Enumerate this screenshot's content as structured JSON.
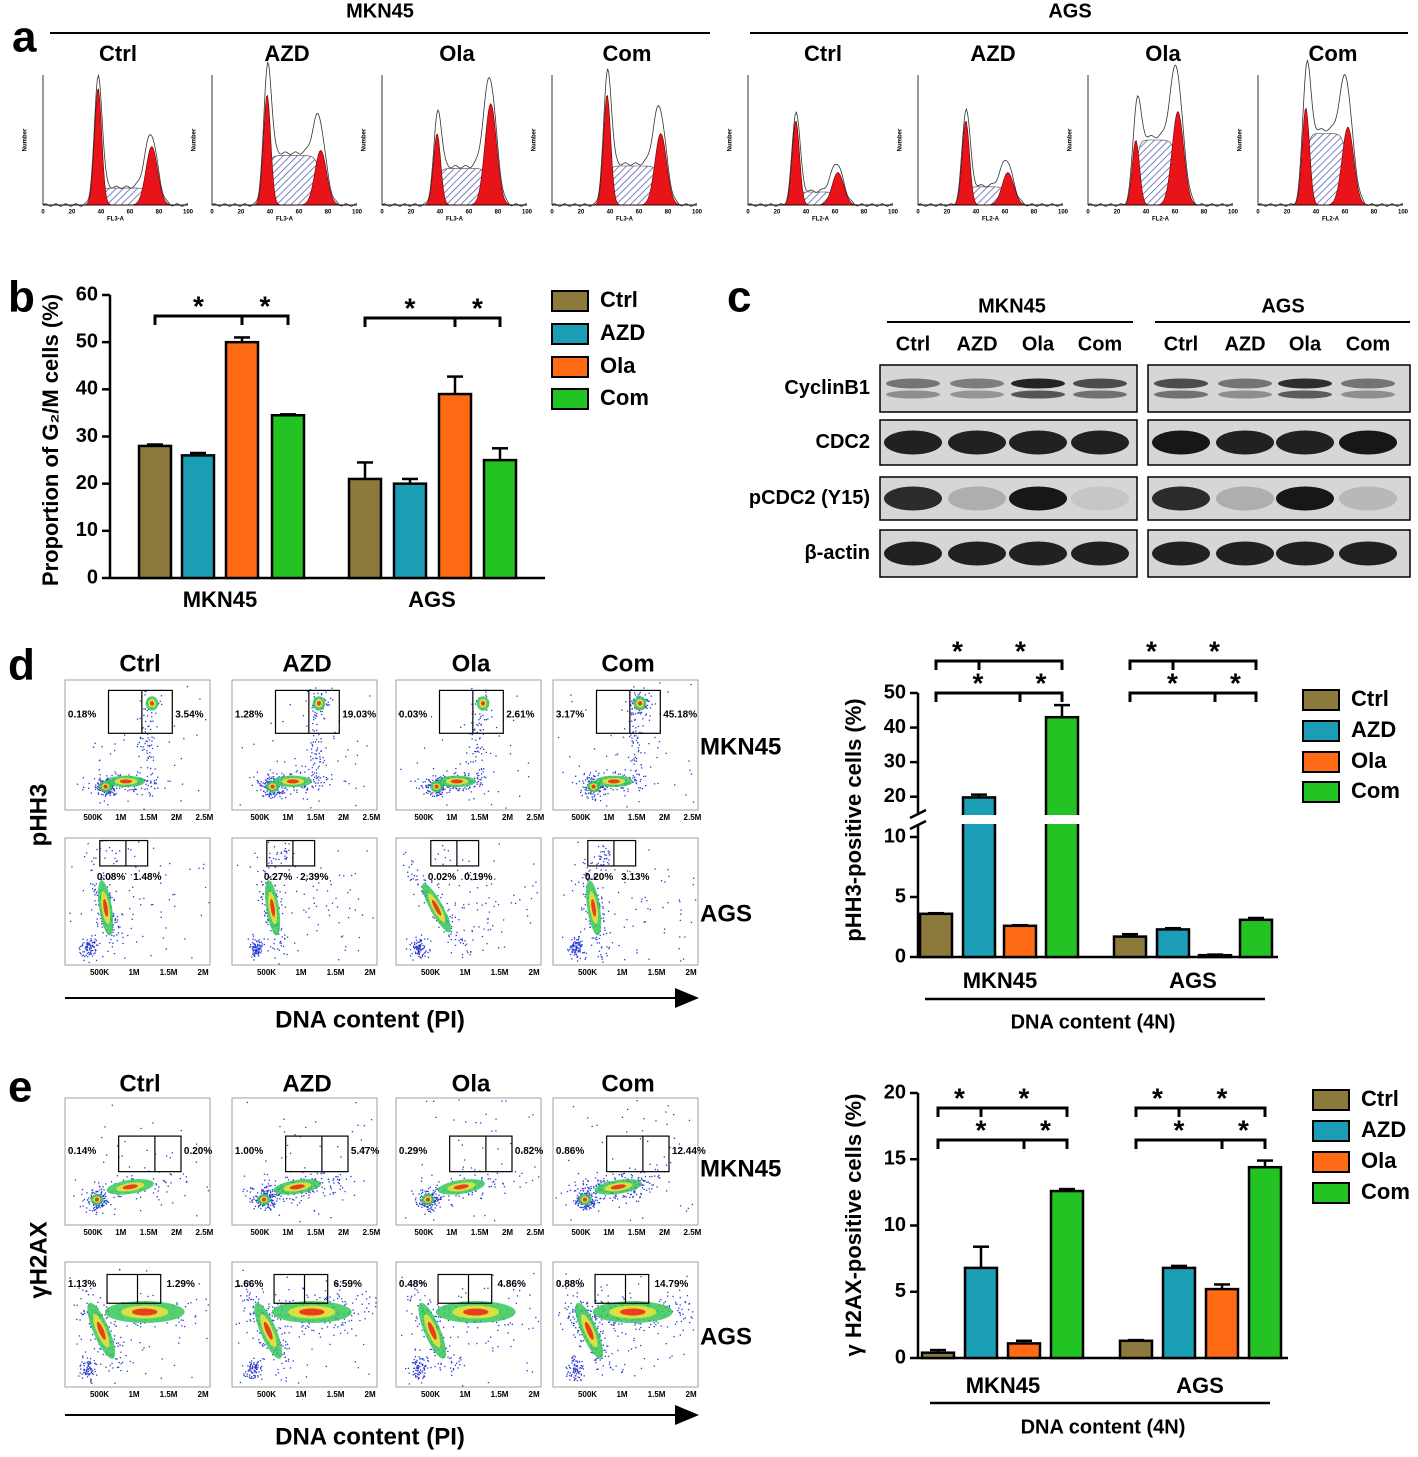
{
  "panels": {
    "a": {
      "letter": "a",
      "y_label": "Number",
      "xticks": [
        0,
        20,
        40,
        60,
        80,
        100
      ],
      "groups": [
        {
          "name": "MKN45",
          "conditions": [
            "Ctrl",
            "AZD",
            "Ola",
            "Com"
          ],
          "x_label": "FL3-A"
        },
        {
          "name": "AGS",
          "conditions": [
            "Ctrl",
            "AZD",
            "Ola",
            "Com"
          ],
          "x_label": "FL2-A"
        }
      ]
    },
    "c": {
      "letter": "c",
      "proteins": [
        "CyclinB1",
        "CDC2",
        "pCDC2 (Y15)",
        "β-actin"
      ],
      "groups": [
        {
          "name": "MKN45",
          "lanes": [
            "Ctrl",
            "AZD",
            "Ola",
            "Com"
          ]
        },
        {
          "name": "AGS",
          "lanes": [
            "Ctrl",
            "AZD",
            "Ola",
            "Com"
          ]
        }
      ]
    },
    "d": {
      "letter": "d",
      "conditions": [
        "Ctrl",
        "AZD",
        "Ola",
        "Com"
      ],
      "y_label": "pHH3",
      "x_label": "DNA content (PI)",
      "rows": [
        {
          "name": "MKN45",
          "xticks": [
            "500K",
            "1M",
            "1.5M",
            "2M",
            "2.5M"
          ],
          "gates": [
            [
              "0.18%",
              "3.54%"
            ],
            [
              "1.28%",
              "19.03%"
            ],
            [
              "0.03%",
              "2.61%"
            ],
            [
              "3.17%",
              "45.18%"
            ]
          ]
        },
        {
          "name": "AGS",
          "xticks": [
            "500K",
            "1M",
            "1.5M",
            "2M"
          ],
          "gates": [
            [
              "0.08%",
              "1.48%"
            ],
            [
              "0.27%",
              "2.39%"
            ],
            [
              "0.02%",
              "0.19%"
            ],
            [
              "0.20%",
              "3.13%"
            ]
          ]
        }
      ]
    },
    "e": {
      "letter": "e",
      "conditions": [
        "Ctrl",
        "AZD",
        "Ola",
        "Com"
      ],
      "y_label": "γH2AX",
      "x_label": "DNA content (PI)",
      "rows": [
        {
          "name": "MKN45",
          "xticks": [
            "500K",
            "1M",
            "1.5M",
            "2M",
            "2.5M"
          ],
          "gates": [
            [
              "0.14%",
              "0.20%"
            ],
            [
              "1.00%",
              "5.47%"
            ],
            [
              "0.29%",
              "0.82%"
            ],
            [
              "0.86%",
              "12.44%"
            ]
          ]
        },
        {
          "name": "AGS",
          "xticks": [
            "500K",
            "1M",
            "1.5M",
            "2M"
          ],
          "gates": [
            [
              "1.13%",
              "1.29%"
            ],
            [
              "1.66%",
              "6.59%"
            ],
            [
              "0.48%",
              "4.86%"
            ],
            [
              "0.88%",
              "14.79%"
            ]
          ]
        }
      ]
    }
  },
  "chart_data": [
    {
      "type": "bar",
      "panel_label": "b",
      "y_label": "Proportion of G₂/M cells (%)",
      "categories": [
        "MKN45",
        "AGS"
      ],
      "ylim": [
        0,
        60
      ],
      "yticks": [
        0,
        10,
        20,
        30,
        40,
        50,
        60
      ],
      "significance": [
        "*",
        "*",
        "*",
        "*"
      ],
      "series": [
        {
          "name": "Ctrl",
          "color": "#8b7a3c",
          "values": [
            28,
            21
          ],
          "errors": [
            0.3,
            3.5
          ]
        },
        {
          "name": "AZD",
          "color": "#1c9db6",
          "values": [
            26,
            20
          ],
          "errors": [
            0.5,
            1
          ]
        },
        {
          "name": "Ola",
          "color": "#ff6a14",
          "values": [
            50,
            39
          ],
          "errors": [
            1,
            3.7
          ]
        },
        {
          "name": "Com",
          "color": "#22c322",
          "values": [
            34.5,
            25
          ],
          "errors": [
            0.2,
            2.5
          ]
        }
      ]
    },
    {
      "type": "bar",
      "y_label": "pHH3-positive cells (%)",
      "x_label": "DNA content (4N)",
      "categories": [
        "MKN45",
        "AGS"
      ],
      "ylim": [
        0,
        50
      ],
      "ybreak": [
        11,
        15
      ],
      "yticks": [
        0,
        5,
        10,
        20,
        30,
        40,
        50
      ],
      "significance": [
        "*",
        "*",
        "*",
        "*",
        "*",
        "*",
        "*",
        "*"
      ],
      "series": [
        {
          "name": "Ctrl",
          "color": "#8b7a3c",
          "values": [
            3.6,
            1.7
          ],
          "errors": [
            0.05,
            0.2
          ]
        },
        {
          "name": "AZD",
          "color": "#1c9db6",
          "values": [
            19.8,
            2.3
          ],
          "errors": [
            0.8,
            0.1
          ]
        },
        {
          "name": "Ola",
          "color": "#ff6a14",
          "values": [
            2.6,
            0.15
          ],
          "errors": [
            0.05,
            0.05
          ]
        },
        {
          "name": "Com",
          "color": "#22c322",
          "values": [
            43,
            3.1
          ],
          "errors": [
            3.5,
            0.15
          ]
        }
      ]
    },
    {
      "type": "bar",
      "y_label": "γ H2AX-positive cells (%)",
      "x_label": "DNA content (4N)",
      "categories": [
        "MKN45",
        "AGS"
      ],
      "ylim": [
        0,
        20
      ],
      "yticks": [
        0,
        5,
        10,
        15,
        20
      ],
      "significance": [
        "*",
        "*",
        "*",
        "*",
        "*",
        "*",
        "*",
        "*"
      ],
      "series": [
        {
          "name": "Ctrl",
          "color": "#8b7a3c",
          "values": [
            0.4,
            1.3
          ],
          "errors": [
            0.2,
            0.05
          ]
        },
        {
          "name": "AZD",
          "color": "#1c9db6",
          "values": [
            6.8,
            6.8
          ],
          "errors": [
            1.6,
            0.15
          ]
        },
        {
          "name": "Ola",
          "color": "#ff6a14",
          "values": [
            1.1,
            5.2
          ],
          "errors": [
            0.2,
            0.35
          ]
        },
        {
          "name": "Com",
          "color": "#22c322",
          "values": [
            12.6,
            14.4
          ],
          "errors": [
            0.15,
            0.5
          ]
        }
      ]
    }
  ]
}
